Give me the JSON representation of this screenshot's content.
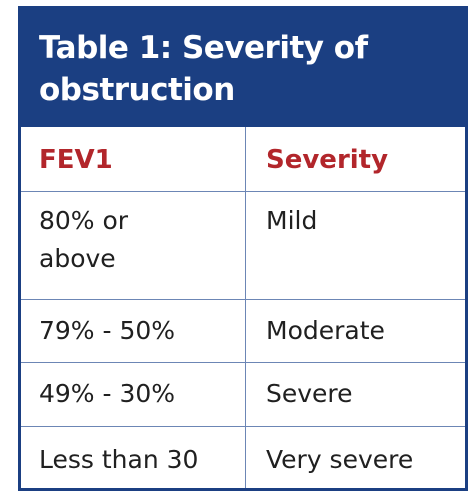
{
  "table": {
    "title_line1": "Table 1: Severity of",
    "title_line2": "obstruction",
    "headers": {
      "fev1": "FEV1",
      "severity": "Severity"
    },
    "rows": [
      {
        "fev1_line1": "80% or",
        "fev1_line2": "above",
        "severity": "Mild"
      },
      {
        "fev1": "79% - 50%",
        "severity": "Moderate"
      },
      {
        "fev1": "49% - 30%",
        "severity": "Severe"
      },
      {
        "fev1": "Less than 30",
        "severity": "Very severe"
      }
    ]
  },
  "colors": {
    "header_blue": "#1b3f82",
    "header_text_red": "#b2262b",
    "grid_line": "#6c86b5"
  }
}
